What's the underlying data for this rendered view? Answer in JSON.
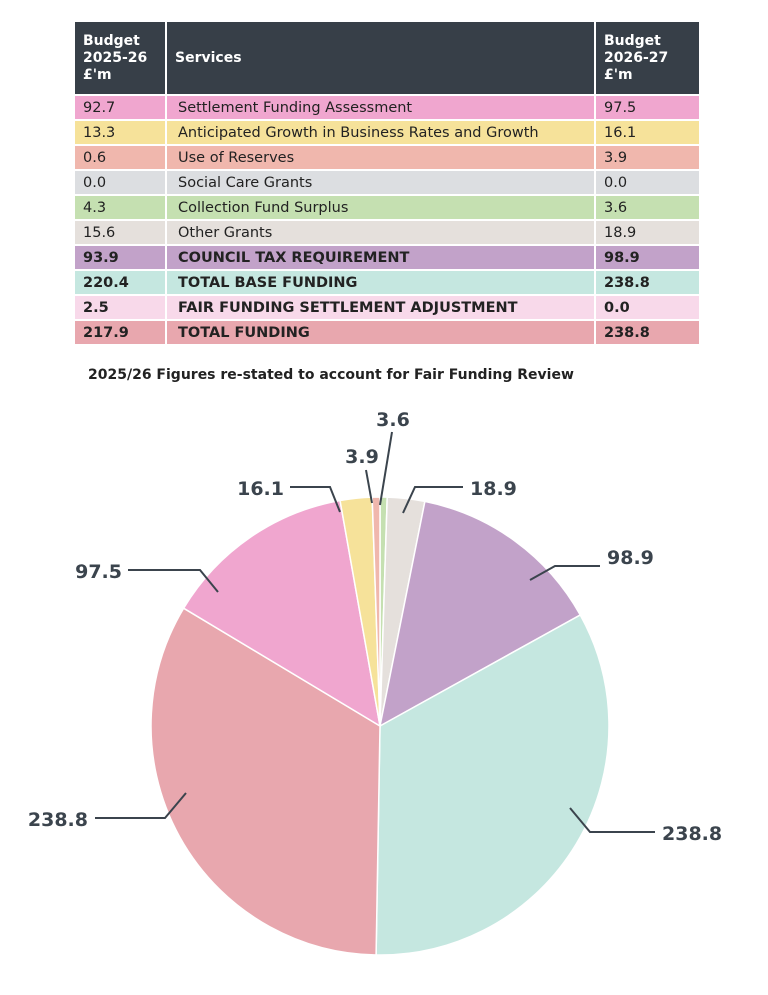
{
  "table": {
    "headers": [
      "Budget 2025-26 £'m",
      "Services",
      "Budget 2026-27 £'m"
    ],
    "header_lines": [
      [
        "Budget",
        "2025-26",
        "£'m"
      ],
      [
        "Services"
      ],
      [
        "Budget",
        "2026-27",
        "£'m"
      ]
    ],
    "rows": [
      {
        "y1": "92.7",
        "service": "Settlement Funding Assessment",
        "y2": "97.5",
        "color": "#f0a6cf",
        "bold": false
      },
      {
        "y1": "13.3",
        "service": "Anticipated Growth in Business  Rates and Growth",
        "y2": "16.1",
        "color": "#f6e29a",
        "bold": false
      },
      {
        "y1": "0.6",
        "service": "Use of Reserves",
        "y2": "3.9",
        "color": "#f0b7ad",
        "bold": false
      },
      {
        "y1": "0.0",
        "service": "Social Care Grants",
        "y2": "0.0",
        "color": "#dcdee1",
        "bold": false
      },
      {
        "y1": "4.3",
        "service": "Collection Fund Surplus",
        "y2": "3.6",
        "color": "#c5e0b1",
        "bold": false
      },
      {
        "y1": "15.6",
        "service": "Other Grants",
        "y2": "18.9",
        "color": "#e5e0dc",
        "bold": false
      },
      {
        "y1": "93.9",
        "service": "COUNCIL TAX REQUIREMENT",
        "y2": "98.9",
        "color": "#c2a2c9",
        "bold": true
      },
      {
        "y1": "220.4",
        "service": "TOTAL BASE FUNDING",
        "y2": "238.8",
        "color": "#c5e7e0",
        "bold": true
      },
      {
        "y1": "2.5",
        "service": "FAIR FUNDING SETTLEMENT ADJUSTMENT",
        "y2": "0.0",
        "color": "#f8d9ea",
        "bold": true
      },
      {
        "y1": "217.9",
        "service": "TOTAL FUNDING",
        "y2": "238.8",
        "color": "#e8a7ae",
        "bold": true
      }
    ],
    "note": "2025/26 Figures re-stated to account for Fair Funding Review"
  },
  "chart_data": {
    "type": "pie",
    "start": "top, clockwise",
    "slices": [
      {
        "category": "Collection Fund Surplus",
        "value": 3.6,
        "label": "3.6",
        "color": "#c5e0b1"
      },
      {
        "category": "Other Grants",
        "value": 18.9,
        "label": "18.9",
        "color": "#e5e0dc"
      },
      {
        "category": "COUNCIL TAX REQUIREMENT",
        "value": 98.9,
        "label": "98.9",
        "color": "#c2a2c9"
      },
      {
        "category": "TOTAL BASE FUNDING",
        "value": 238.8,
        "label": "238.8",
        "color": "#c5e7e0"
      },
      {
        "category": "TOTAL FUNDING",
        "value": 238.8,
        "label": "238.8",
        "color": "#e8a7ae"
      },
      {
        "category": "Settlement Funding Assessment",
        "value": 97.5,
        "label": "97.5",
        "color": "#f0a6cf"
      },
      {
        "category": "Anticipated Growth in Business Rates and Growth",
        "value": 16.1,
        "label": "16.1",
        "color": "#f6e29a"
      },
      {
        "category": "Use of Reserves",
        "value": 3.9,
        "label": "3.9",
        "color": "#f0b7ad"
      }
    ],
    "label_color": "#3b444d"
  }
}
